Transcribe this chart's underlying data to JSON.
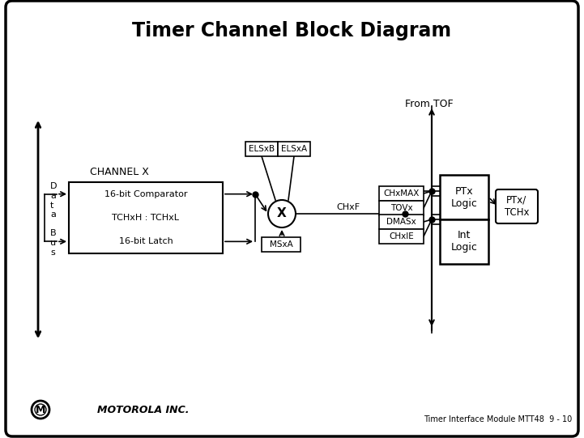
{
  "title": "Timer Channel Block Diagram",
  "bg_color": "#ffffff",
  "footer_text": "Timer Interface Module MTT48  9 - 10",
  "from_tof_label": "From TOF",
  "data_bus_label": "D\na\nt\na\n \nB\nu\ns",
  "channel_x_label": "CHANNEL X",
  "comp_label": "16-bit Comparator",
  "tch_label": "TCHxH : TCHxL",
  "latch_label": "16-bit Latch",
  "elsxb_label": "ELSxB",
  "elsxa_label": "ELSxA",
  "msxa_label": "MSxA",
  "chxf_label": "CHxF",
  "chxmax_label": "CHxMAX",
  "tovx_label": "TOVx",
  "dmasx_label": "DMASx",
  "chxie_label": "CHxIE",
  "ptx_logic_label": "PTx\nLogic",
  "int_logic_label": "Int\nLogic",
  "ptx_tchx_label": "PTx/\nTCHx"
}
